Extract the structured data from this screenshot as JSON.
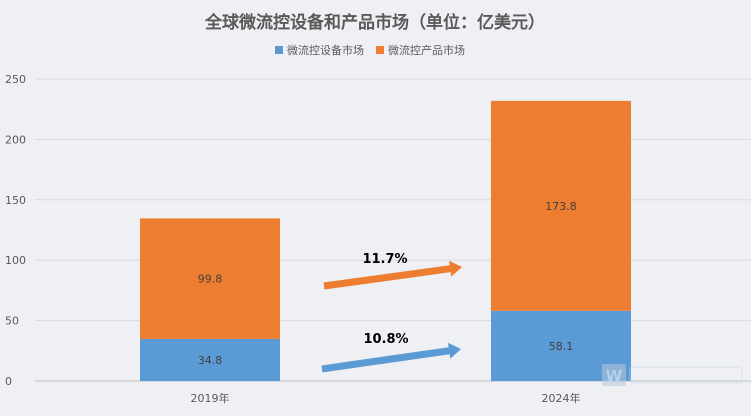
{
  "chart_data": {
    "type": "bar",
    "stacked": true,
    "title": "全球微流控设备和产品市场（单位：亿美元）",
    "categories": [
      "2019年",
      "2024年"
    ],
    "series": [
      {
        "name": "微流控设备市场",
        "values": [
          34.8,
          58.1
        ],
        "color": "#5b9bd5"
      },
      {
        "name": "微流控产品市场",
        "values": [
          99.8,
          173.8
        ],
        "color": "#ed7d31"
      }
    ],
    "ylim": [
      0,
      250
    ],
    "yticks": [
      0,
      50,
      100,
      150,
      200,
      250
    ],
    "grid": true,
    "legend": "top",
    "annotations": [
      {
        "text": "11.7%",
        "series": "微流控产品市场",
        "arrow_color": "#ed7d31"
      },
      {
        "text": "10.8%",
        "series": "微流控设备市场",
        "arrow_color": "#5b9bd5"
      }
    ]
  },
  "watermark": {
    "icon": "logo-icon"
  }
}
